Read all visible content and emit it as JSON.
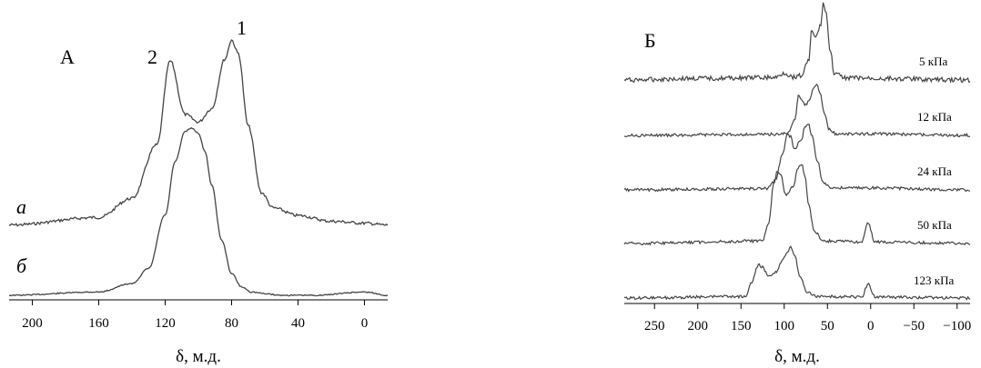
{
  "chart_data": [
    {
      "type": "line",
      "panel_label": "А",
      "xlabel": "δ, м.д.",
      "ylabel": "",
      "xlim": [
        214,
        -14
      ],
      "x_ticks": [
        200,
        160,
        120,
        80,
        40,
        0
      ],
      "grid": false,
      "peak_labels": [
        {
          "text": "1",
          "x": 79
        },
        {
          "text": "2",
          "x": 117
        }
      ],
      "series": [
        {
          "name": "а",
          "x": [
            214,
            160,
            140,
            125,
            117,
            108,
            100,
            92,
            84,
            80,
            76,
            70,
            62,
            55,
            40,
            20,
            0,
            -14
          ],
          "y": [
            0.03,
            0.07,
            0.17,
            0.45,
            0.89,
            0.61,
            0.57,
            0.64,
            0.9,
            1.0,
            0.93,
            0.55,
            0.2,
            0.12,
            0.08,
            0.05,
            0.04,
            0.03
          ]
        },
        {
          "name": "б",
          "x": [
            214,
            160,
            140,
            130,
            120,
            114,
            108,
            104,
            100,
            96,
            92,
            86,
            80,
            74,
            68,
            60,
            50,
            30,
            0,
            -14
          ],
          "y": [
            0.0,
            0.02,
            0.07,
            0.16,
            0.48,
            0.8,
            0.98,
            1.0,
            0.97,
            0.86,
            0.66,
            0.33,
            0.13,
            0.05,
            0.02,
            0.01,
            0.0,
            0.0,
            0.02,
            0.0
          ]
        }
      ]
    },
    {
      "type": "line",
      "panel_label": "Б",
      "xlabel": "δ, м.д.",
      "ylabel": "",
      "xlim": [
        285,
        -115
      ],
      "x_ticks": [
        250,
        200,
        150,
        100,
        50,
        0,
        -50,
        -100
      ],
      "x_tick_labels": [
        "250",
        "200",
        "150",
        "100",
        "50",
        "0",
        "−50",
        "−100"
      ],
      "grid": false,
      "series": [
        {
          "name": "5 кПа",
          "x": [
            285,
            200,
            110,
            100,
            90,
            80,
            72,
            68,
            64,
            58,
            55,
            52,
            47,
            42,
            30,
            0,
            -115
          ],
          "y": [
            0.0,
            0.02,
            0.03,
            0.09,
            0.04,
            0.06,
            0.25,
            0.65,
            0.55,
            0.7,
            1.0,
            0.9,
            0.4,
            0.08,
            0.03,
            0.02,
            0.0
          ]
        },
        {
          "name": "12 кПа",
          "x": [
            285,
            110,
            95,
            88,
            83,
            80,
            76,
            70,
            66,
            62,
            58,
            54,
            48,
            40,
            0,
            -115
          ],
          "y": [
            0.0,
            0.02,
            0.05,
            0.3,
            0.8,
            0.72,
            0.6,
            0.7,
            0.93,
            1.0,
            0.8,
            0.45,
            0.12,
            0.03,
            0.03,
            0.0
          ]
        },
        {
          "name": "24 кПа",
          "x": [
            285,
            120,
            110,
            102,
            96,
            93,
            88,
            80,
            76,
            72,
            68,
            62,
            55,
            45,
            0,
            -115
          ],
          "y": [
            0.0,
            0.02,
            0.15,
            0.55,
            0.85,
            0.82,
            0.62,
            0.78,
            0.95,
            1.0,
            0.85,
            0.45,
            0.12,
            0.03,
            0.03,
            0.0
          ]
        },
        {
          "name": "50 кПа",
          "x": [
            285,
            125,
            118,
            112,
            108,
            104,
            98,
            90,
            84,
            80,
            76,
            72,
            65,
            55,
            10,
            3,
            -5,
            -115
          ],
          "y": [
            0.0,
            0.03,
            0.25,
            0.75,
            0.9,
            0.85,
            0.6,
            0.7,
            0.95,
            1.0,
            0.85,
            0.5,
            0.15,
            0.03,
            0.02,
            0.25,
            0.02,
            0.0
          ]
        },
        {
          "name": "123 кПа",
          "x": [
            285,
            145,
            138,
            130,
            126,
            118,
            110,
            102,
            96,
            92,
            88,
            82,
            74,
            60,
            10,
            3,
            -5,
            -115
          ],
          "y": [
            0.0,
            0.03,
            0.3,
            0.65,
            0.62,
            0.45,
            0.5,
            0.75,
            0.92,
            1.0,
            0.85,
            0.45,
            0.12,
            0.03,
            0.02,
            0.28,
            0.02,
            0.0
          ]
        }
      ]
    }
  ]
}
